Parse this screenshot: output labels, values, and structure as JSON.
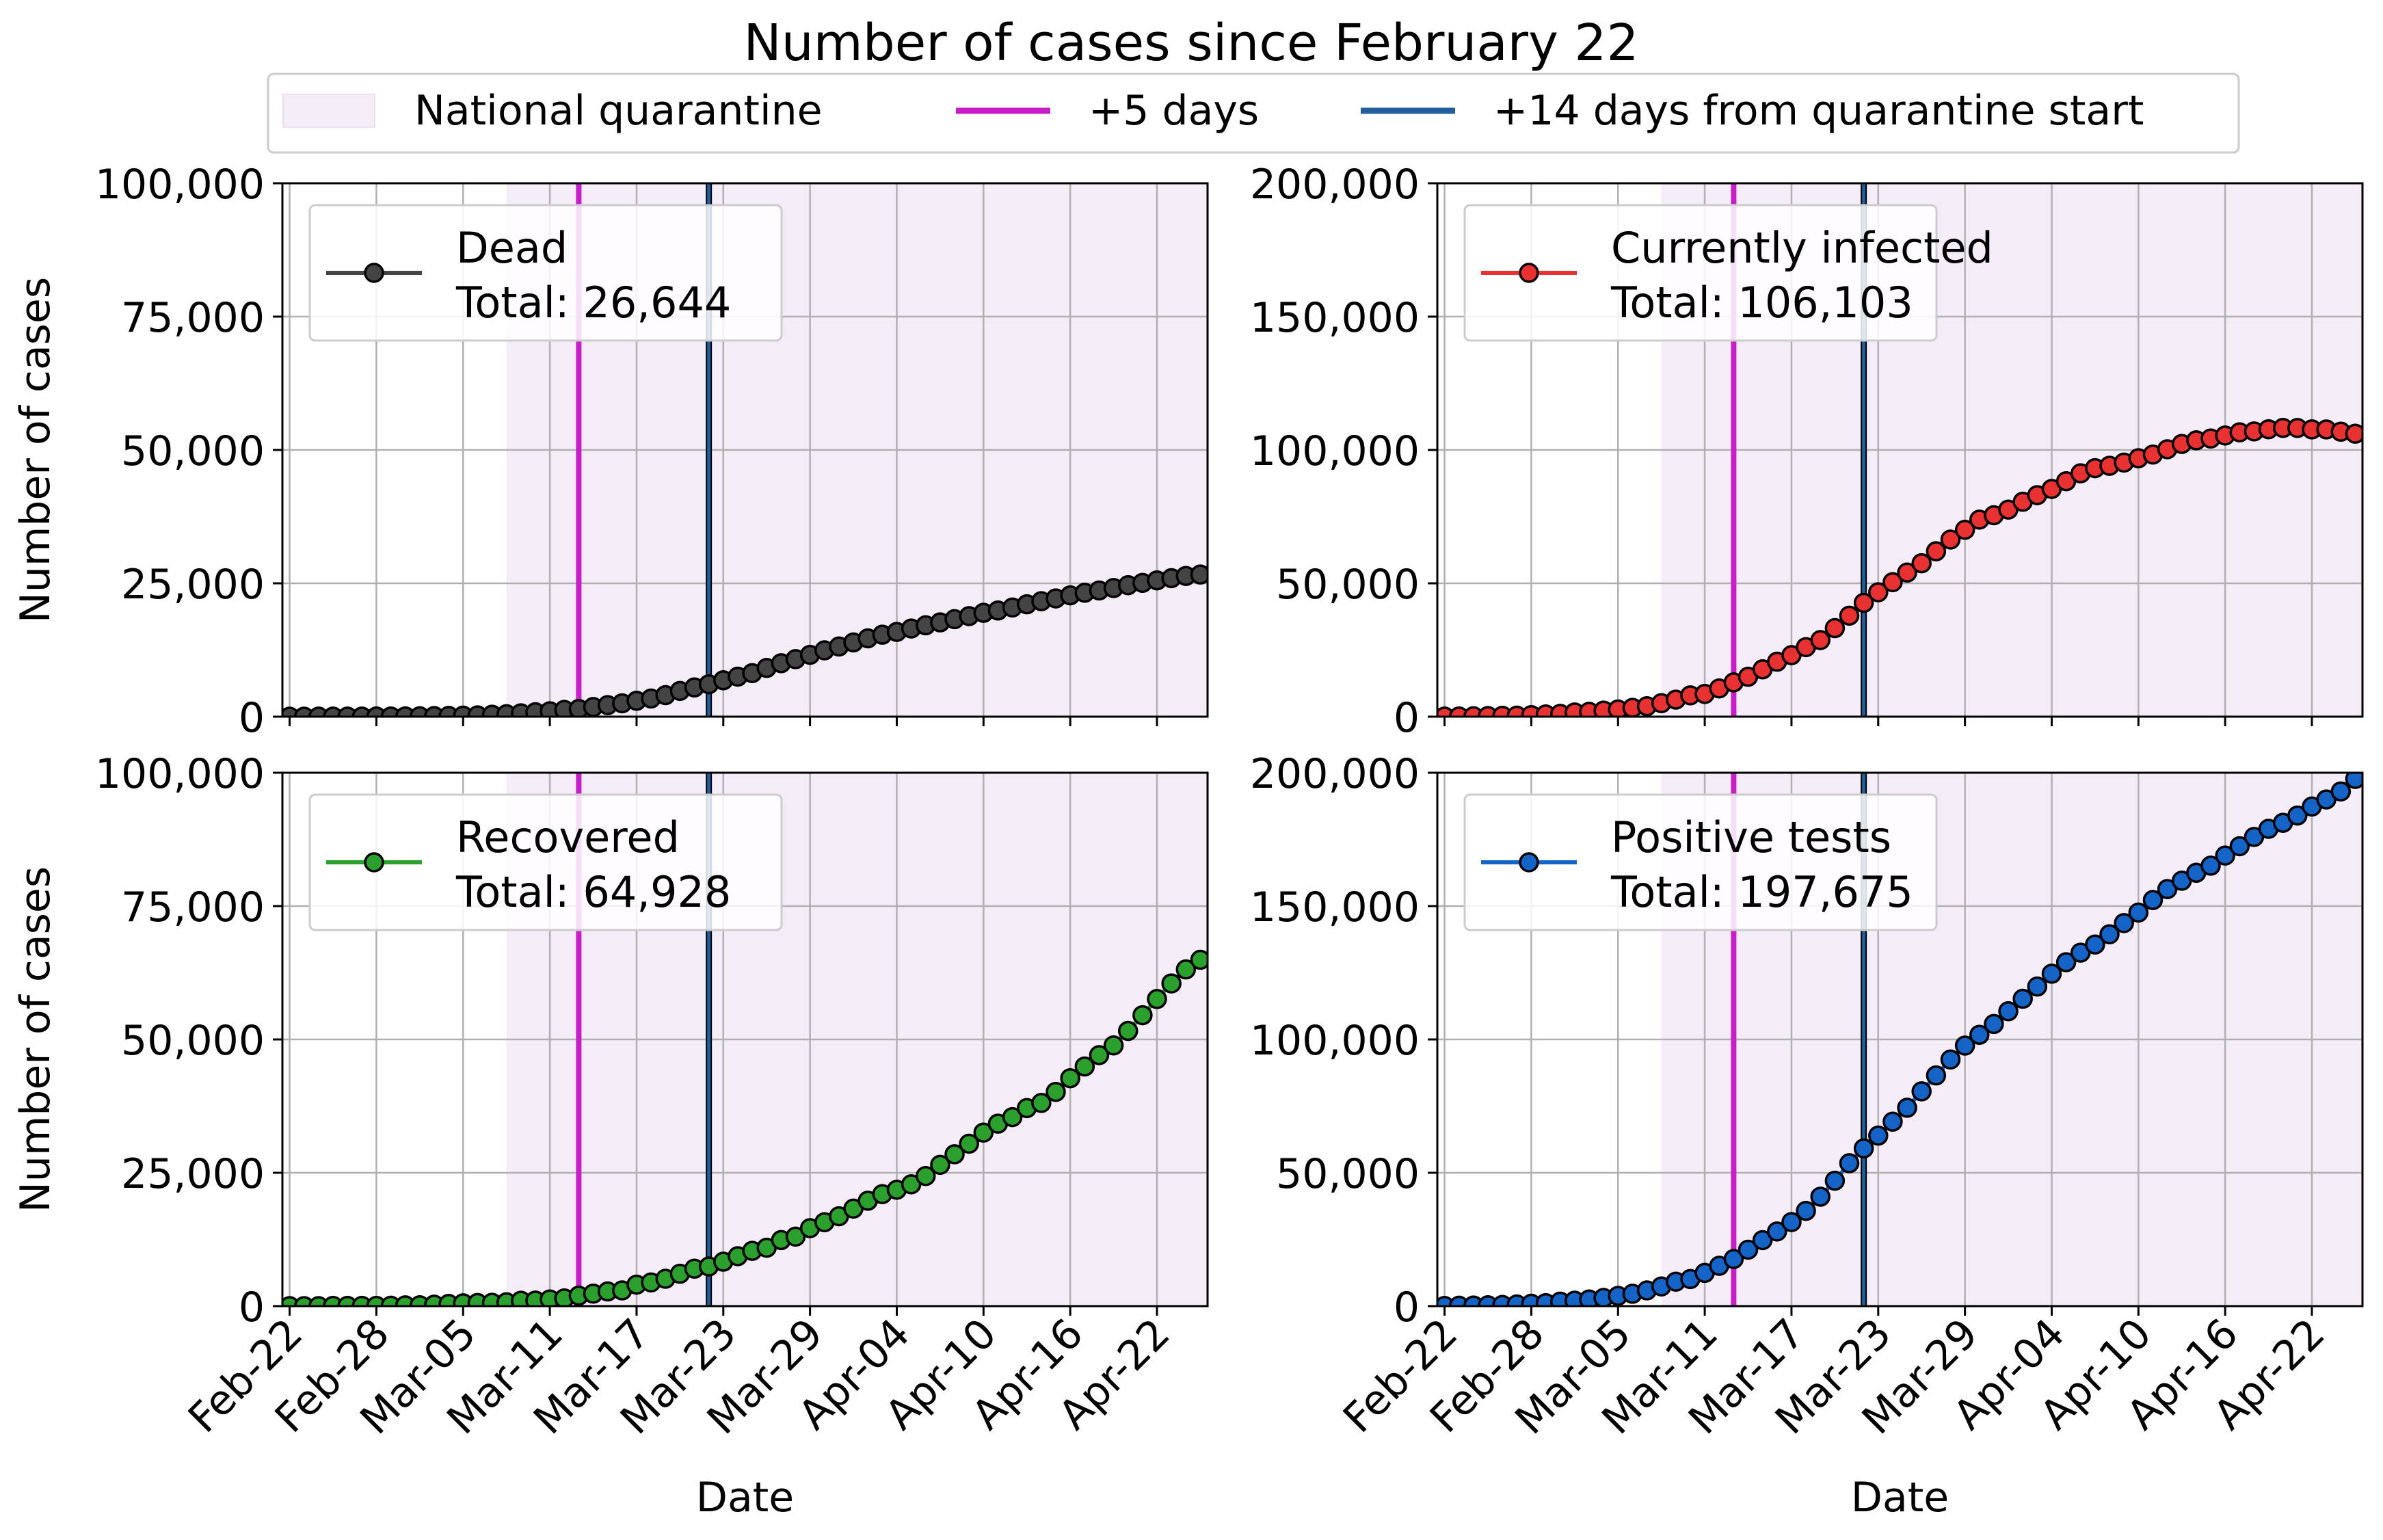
{
  "title": "Number of cases since February 22",
  "legend": {
    "quarantine": "National quarantine",
    "plus5": "+5 days",
    "plus14": "+14 days from quarantine start"
  },
  "colors": {
    "quarantine_fill": "#f4ecf6",
    "plus5": "#c81ec8",
    "plus14": "#1f5fa0",
    "grid": "#b0b0b0"
  },
  "dates": {
    "start": "2020-02-22",
    "end": "2020-04-25",
    "quarantine_start": "2020-03-08",
    "plus5_day": "2020-03-13",
    "plus14_day": "2020-03-22"
  },
  "xlabel": "Date",
  "ylabel": "Number of cases",
  "xticks": [
    "Feb-22",
    "Feb-28",
    "Mar-05",
    "Mar-11",
    "Mar-17",
    "Mar-23",
    "Mar-29",
    "Apr-04",
    "Apr-10",
    "Apr-16",
    "Apr-22"
  ],
  "chart_data": [
    {
      "type": "line",
      "series": [
        {
          "name": "Dead",
          "total_label": "Total: 26,644",
          "color": "#444444",
          "values": [
            3,
            7,
            11,
            12,
            17,
            21,
            29,
            34,
            52,
            79,
            107,
            148,
            197,
            233,
            366,
            463,
            631,
            827,
            1016,
            1266,
            1441,
            1809,
            2158,
            2503,
            2978,
            3405,
            4032,
            4825,
            5476,
            6077,
            6820,
            7503,
            8165,
            9134,
            10023,
            10779,
            11591,
            12428,
            13155,
            13915,
            14681,
            15362,
            15887,
            16523,
            17127,
            17669,
            18279,
            18849,
            19468,
            19899,
            20465,
            21067,
            21645,
            22170,
            22745,
            23227,
            23660,
            24114,
            24648,
            25085,
            25549,
            25969,
            26384,
            26644
          ]
        }
      ],
      "ylim": [
        0,
        100000
      ],
      "yticks": [
        "0",
        "25,000",
        "50,000",
        "75,000",
        "100,000"
      ]
    },
    {
      "type": "line",
      "series": [
        {
          "name": "Currently infected",
          "total_label": "Total: 106,103",
          "color": "#e83232",
          "values": [
            17,
            76,
            150,
            221,
            311,
            385,
            588,
            821,
            1049,
            1577,
            1835,
            2263,
            2706,
            3296,
            3916,
            5061,
            6387,
            7985,
            8514,
            10590,
            12839,
            14955,
            17750,
            20603,
            23073,
            26062,
            28710,
            33190,
            37860,
            42681,
            46638,
            50418,
            54030,
            57521,
            62013,
            66414,
            70065,
            73880,
            75528,
            77635,
            80572,
            83049,
            85388,
            88274,
            91246,
            93187,
            94067,
            95262,
            96877,
            98273,
            100269,
            102253,
            103616,
            104291,
            105418,
            106607,
            106962,
            107771,
            108257,
            108237,
            107709,
            107699,
            106848,
            106103
          ]
        }
      ],
      "ylim": [
        0,
        200000
      ],
      "yticks": [
        "0",
        "50,000",
        "100,000",
        "150,000",
        "200,000"
      ]
    },
    {
      "type": "line",
      "series": [
        {
          "name": "Recovered",
          "total_label": "Total: 64,928",
          "color": "#2ca02c",
          "values": [
            1,
            2,
            3,
            45,
            46,
            46,
            50,
            83,
            149,
            160,
            276,
            414,
            523,
            589,
            622,
            724,
            1004,
            1045,
            1258,
            1439,
            1966,
            2335,
            2749,
            2941,
            4025,
            4440,
            5129,
            6072,
            7024,
            7432,
            8326,
            9362,
            10361,
            10950,
            12384,
            13030,
            14620,
            15729,
            16847,
            18278,
            19758,
            20996,
            21815,
            22837,
            24392,
            26491,
            28470,
            30455,
            32534,
            34211,
            35435,
            37130,
            38092,
            40164,
            42727,
            44927,
            47055,
            48877,
            51600,
            54543,
            57576,
            60498,
            63120,
            64928
          ]
        }
      ],
      "ylim": [
        0,
        100000
      ],
      "yticks": [
        "0",
        "25,000",
        "50,000",
        "75,000",
        "100,000"
      ]
    },
    {
      "type": "line",
      "series": [
        {
          "name": "Positive tests",
          "total_label": "Total: 197,675",
          "color": "#1464c8",
          "values": [
            79,
            150,
            227,
            320,
            445,
            650,
            888,
            1128,
            1694,
            2036,
            2502,
            3089,
            3858,
            4636,
            5883,
            7375,
            9172,
            10149,
            12462,
            15113,
            17660,
            21157,
            24747,
            27980,
            31506,
            35713,
            41035,
            47021,
            53578,
            59138,
            63927,
            69176,
            74386,
            80539,
            86498,
            92472,
            97689,
            101739,
            105792,
            110574,
            115242,
            119827,
            124632,
            128948,
            132547,
            135586,
            139422,
            143626,
            147577,
            152271,
            156363,
            159516,
            162488,
            165155,
            168941,
            172434,
            175925,
            178972,
            181228,
            183957,
            187327,
            189973,
            192994,
            197675
          ]
        }
      ],
      "ylim": [
        0,
        200000
      ],
      "yticks": [
        "0",
        "50,000",
        "100,000",
        "150,000",
        "200,000"
      ]
    }
  ]
}
